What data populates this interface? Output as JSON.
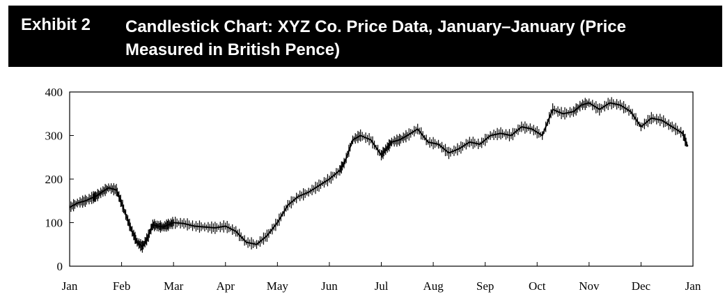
{
  "header": {
    "exhibit_label": "Exhibit 2",
    "title": "Candlestick Chart: XYZ Co. Price Data, January–January (Price Measured in British Pence)",
    "background": "#000000",
    "text_color": "#ffffff"
  },
  "chart_data": {
    "type": "line",
    "title": "Candlestick Chart: XYZ Co. Price Data, January–January (Price Measured in British Pence)",
    "xlabel": "",
    "ylabel": "",
    "ylim": [
      0,
      400
    ],
    "y_ticks": [
      "0",
      "100",
      "200",
      "300",
      "400"
    ],
    "x_ticks": [
      "Jan",
      "Feb",
      "Mar",
      "Apr",
      "May",
      "Jun",
      "Jul",
      "Aug",
      "Sep",
      "Oct",
      "Nov",
      "Dec",
      "Jan"
    ],
    "grid": false,
    "line_color": "#000000",
    "series": [
      {
        "x": [
          0.0,
          0.15,
          0.3,
          0.45,
          0.5,
          0.62,
          0.75,
          0.9,
          1.0,
          1.12,
          1.22,
          1.3,
          1.4,
          1.5,
          1.6,
          1.7,
          1.8,
          1.9,
          2.0,
          2.2,
          2.4,
          2.6,
          2.8,
          3.0,
          3.2,
          3.4,
          3.6,
          3.8,
          4.0,
          4.2,
          4.4,
          4.6,
          4.8,
          5.0,
          5.2,
          5.3,
          5.45,
          5.6,
          5.8,
          6.0,
          6.1,
          6.2,
          6.35,
          6.5,
          6.7,
          6.9,
          7.1,
          7.3,
          7.5,
          7.7,
          7.9,
          8.1,
          8.3,
          8.5,
          8.7,
          8.9,
          9.1,
          9.3,
          9.5,
          9.7,
          9.85,
          10.0,
          10.2,
          10.4,
          10.6,
          10.8,
          11.0,
          11.2,
          11.4,
          11.6,
          11.8,
          11.9
        ],
        "y": [
          135,
          145,
          150,
          158,
          160,
          170,
          180,
          175,
          145,
          105,
          75,
          55,
          45,
          65,
          95,
          92,
          90,
          95,
          100,
          98,
          92,
          90,
          88,
          92,
          80,
          55,
          50,
          70,
          100,
          140,
          160,
          170,
          185,
          200,
          220,
          240,
          290,
          300,
          290,
          255,
          270,
          285,
          290,
          300,
          315,
          285,
          280,
          260,
          270,
          285,
          280,
          300,
          305,
          300,
          320,
          315,
          300,
          360,
          350,
          355,
          370,
          375,
          360,
          375,
          370,
          355,
          320,
          340,
          335,
          320,
          305,
          275
        ]
      }
    ]
  }
}
